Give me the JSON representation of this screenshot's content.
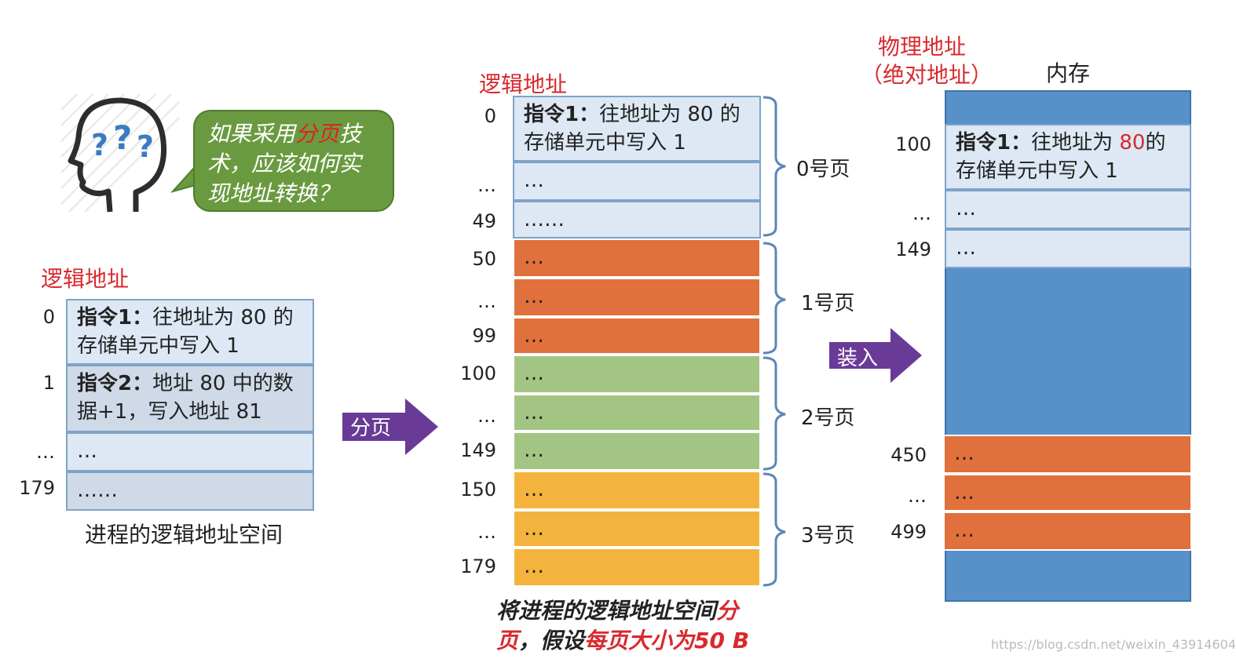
{
  "bubble": {
    "prefix": "如果采用",
    "highlight": "分页",
    "suffix": "技术，应该如何实现地址转换？"
  },
  "left": {
    "title": "逻辑地址",
    "addresses": [
      "0",
      "1",
      "…",
      "179"
    ],
    "cells": [
      {
        "bold": "指令1：",
        "text": "往地址为 80 的存储单元中写入 1"
      },
      {
        "bold": "指令2：",
        "text": "地址 80 中的数据+1，写入地址 81"
      },
      {
        "bold": "",
        "text": "…"
      },
      {
        "bold": "",
        "text": "……"
      }
    ],
    "caption": "进程的逻辑地址空间"
  },
  "arrow1": {
    "label": "分页"
  },
  "middle": {
    "title": "逻辑地址",
    "addresses": [
      "0",
      "…",
      "49",
      "50",
      "…",
      "99",
      "100",
      "…",
      "149",
      "150",
      "…",
      "179"
    ],
    "cells": [
      {
        "bold": "指令1：",
        "text": "往地址为 80 的存储单元中写入 1"
      },
      {
        "bold": "",
        "text": "…"
      },
      {
        "bold": "",
        "text": "……"
      },
      {
        "bold": "",
        "text": "…"
      },
      {
        "bold": "",
        "text": "…"
      },
      {
        "bold": "",
        "text": "…"
      },
      {
        "bold": "",
        "text": "…"
      },
      {
        "bold": "",
        "text": "…"
      },
      {
        "bold": "",
        "text": "…"
      },
      {
        "bold": "",
        "text": "…"
      },
      {
        "bold": "",
        "text": "…"
      },
      {
        "bold": "",
        "text": "…"
      }
    ],
    "pages": [
      "0号页",
      "1号页",
      "2号页",
      "3号页"
    ],
    "caption_part1": "将进程的逻辑地址空间",
    "caption_red1": "分页",
    "caption_part2": "，假设",
    "caption_red2": "每页大小为50 B"
  },
  "arrow2": {
    "label": "装入"
  },
  "right": {
    "title_line1": "物理地址",
    "title_line2": "（绝对地址）",
    "mem_label": "内存",
    "addresses": [
      "100",
      "…",
      "149",
      "450",
      "…",
      "499"
    ],
    "cell0_bold": "指令1：",
    "cell0_text1": "往地址为 ",
    "cell0_red": "80",
    "cell0_text2": "的存储单元中写入 1",
    "cells": [
      "…",
      "…",
      "…",
      "…",
      "…"
    ]
  },
  "watermark": "https://blog.csdn.net/weixin_43914604",
  "colors": {
    "light_cell": "#dde8f4",
    "page1": "#e0703c",
    "page2": "#a3c584",
    "page3": "#f4b33c",
    "memory": "#5891c9",
    "arrow": "#6a3b96",
    "bubble": "#6a9a3f",
    "highlight_red": "#d8292e"
  }
}
